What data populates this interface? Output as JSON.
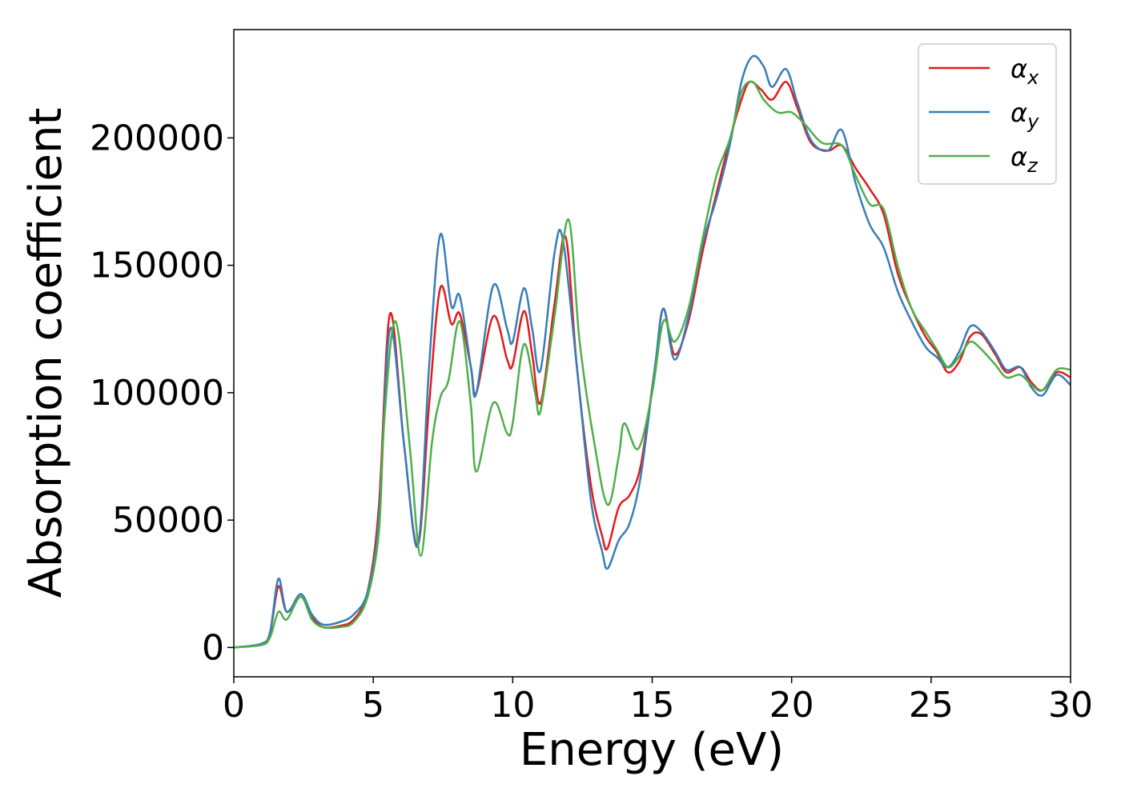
{
  "chart_data": {
    "type": "line",
    "title": "",
    "xlabel": "Energy (eV)",
    "ylabel": "Absorption coefficient",
    "xlim": [
      0,
      30
    ],
    "ylim": [
      -11500,
      242500
    ],
    "x_ticks": [
      0,
      5,
      10,
      15,
      20,
      25,
      30
    ],
    "y_ticks": [
      0,
      50000,
      100000,
      150000,
      200000
    ],
    "grid": false,
    "legend_position": "top-right",
    "series": [
      {
        "name": "α",
        "subscript": "x",
        "color": "#e41a1c",
        "points": [
          [
            0,
            0
          ],
          [
            1,
            1500
          ],
          [
            1.3,
            6000
          ],
          [
            1.6,
            24000
          ],
          [
            1.9,
            14000
          ],
          [
            2.4,
            20000
          ],
          [
            2.8,
            12000
          ],
          [
            3.2,
            8000
          ],
          [
            3.8,
            8500
          ],
          [
            4.3,
            11000
          ],
          [
            4.8,
            22000
          ],
          [
            5.2,
            55000
          ],
          [
            5.6,
            131000
          ],
          [
            6.1,
            80000
          ],
          [
            6.6,
            40000
          ],
          [
            7.0,
            95000
          ],
          [
            7.4,
            141000
          ],
          [
            7.8,
            127000
          ],
          [
            8.1,
            131000
          ],
          [
            8.5,
            110000
          ],
          [
            8.7,
            100000
          ],
          [
            9.3,
            130000
          ],
          [
            9.8,
            113000
          ],
          [
            10.0,
            111000
          ],
          [
            10.4,
            132000
          ],
          [
            10.7,
            115000
          ],
          [
            11.0,
            96000
          ],
          [
            11.5,
            135000
          ],
          [
            11.9,
            161000
          ],
          [
            12.3,
            110000
          ],
          [
            12.8,
            64000
          ],
          [
            13.2,
            44000
          ],
          [
            13.4,
            39000
          ],
          [
            13.8,
            55000
          ],
          [
            14.2,
            60000
          ],
          [
            14.6,
            72000
          ],
          [
            15.1,
            110000
          ],
          [
            15.4,
            133000
          ],
          [
            15.8,
            115000
          ],
          [
            16.3,
            128000
          ],
          [
            16.8,
            155000
          ],
          [
            17.3,
            178000
          ],
          [
            17.8,
            200000
          ],
          [
            18.2,
            215000
          ],
          [
            18.5,
            222000
          ],
          [
            18.9,
            219000
          ],
          [
            19.3,
            215000
          ],
          [
            19.8,
            222000
          ],
          [
            20.2,
            212000
          ],
          [
            20.7,
            198000
          ],
          [
            21.3,
            195000
          ],
          [
            21.8,
            197000
          ],
          [
            22.3,
            188000
          ],
          [
            22.8,
            180000
          ],
          [
            23.3,
            170000
          ],
          [
            23.8,
            147000
          ],
          [
            24.3,
            133000
          ],
          [
            24.8,
            122000
          ],
          [
            25.2,
            116000
          ],
          [
            25.6,
            108000
          ],
          [
            26.0,
            112000
          ],
          [
            26.4,
            122000
          ],
          [
            26.8,
            123000
          ],
          [
            27.3,
            115000
          ],
          [
            27.7,
            108000
          ],
          [
            28.2,
            110000
          ],
          [
            28.6,
            104000
          ],
          [
            29.0,
            101000
          ],
          [
            29.5,
            108000
          ],
          [
            30.0,
            106000
          ]
        ]
      },
      {
        "name": "α",
        "subscript": "y",
        "color": "#377eb8",
        "points": [
          [
            0,
            0
          ],
          [
            1,
            1500
          ],
          [
            1.3,
            6000
          ],
          [
            1.6,
            27000
          ],
          [
            1.9,
            14000
          ],
          [
            2.4,
            21000
          ],
          [
            2.8,
            13000
          ],
          [
            3.2,
            9000
          ],
          [
            3.8,
            10000
          ],
          [
            4.3,
            13000
          ],
          [
            4.8,
            22000
          ],
          [
            5.2,
            50000
          ],
          [
            5.6,
            125000
          ],
          [
            6.1,
            80000
          ],
          [
            6.6,
            40000
          ],
          [
            7.0,
            110000
          ],
          [
            7.4,
            162000
          ],
          [
            7.8,
            134000
          ],
          [
            8.1,
            138000
          ],
          [
            8.5,
            110000
          ],
          [
            8.7,
            100000
          ],
          [
            9.3,
            142000
          ],
          [
            9.8,
            125000
          ],
          [
            10.0,
            120000
          ],
          [
            10.4,
            141000
          ],
          [
            10.7,
            125000
          ],
          [
            11.0,
            109000
          ],
          [
            11.5,
            155000
          ],
          [
            11.8,
            160000
          ],
          [
            12.3,
            110000
          ],
          [
            12.8,
            58000
          ],
          [
            13.2,
            38000
          ],
          [
            13.4,
            31000
          ],
          [
            13.8,
            42000
          ],
          [
            14.2,
            49000
          ],
          [
            14.6,
            68000
          ],
          [
            15.1,
            110000
          ],
          [
            15.4,
            133000
          ],
          [
            15.8,
            113000
          ],
          [
            16.3,
            130000
          ],
          [
            16.8,
            158000
          ],
          [
            17.3,
            176000
          ],
          [
            17.8,
            198000
          ],
          [
            18.2,
            222000
          ],
          [
            18.6,
            232000
          ],
          [
            19.0,
            228000
          ],
          [
            19.3,
            220000
          ],
          [
            19.8,
            227000
          ],
          [
            20.2,
            214000
          ],
          [
            20.7,
            199000
          ],
          [
            21.3,
            195000
          ],
          [
            21.8,
            203000
          ],
          [
            22.3,
            182000
          ],
          [
            22.8,
            166000
          ],
          [
            23.3,
            157000
          ],
          [
            23.8,
            140000
          ],
          [
            24.3,
            128000
          ],
          [
            24.8,
            118000
          ],
          [
            25.2,
            114000
          ],
          [
            25.6,
            110000
          ],
          [
            26.0,
            116000
          ],
          [
            26.4,
            126000
          ],
          [
            26.8,
            124000
          ],
          [
            27.3,
            116000
          ],
          [
            27.7,
            109000
          ],
          [
            28.2,
            110000
          ],
          [
            28.6,
            102000
          ],
          [
            29.0,
            99000
          ],
          [
            29.5,
            107000
          ],
          [
            30.0,
            103000
          ]
        ]
      },
      {
        "name": "α",
        "subscript": "z",
        "color": "#4daf4a",
        "points": [
          [
            0,
            0
          ],
          [
            1,
            1000
          ],
          [
            1.3,
            4000
          ],
          [
            1.6,
            14000
          ],
          [
            1.9,
            11000
          ],
          [
            2.4,
            20000
          ],
          [
            2.8,
            11000
          ],
          [
            3.2,
            8000
          ],
          [
            3.8,
            8000
          ],
          [
            4.3,
            10000
          ],
          [
            4.8,
            20000
          ],
          [
            5.2,
            45000
          ],
          [
            5.4,
            90000
          ],
          [
            5.8,
            128000
          ],
          [
            6.3,
            80000
          ],
          [
            6.7,
            36000
          ],
          [
            7.1,
            80000
          ],
          [
            7.4,
            98000
          ],
          [
            7.7,
            105000
          ],
          [
            8.1,
            128000
          ],
          [
            8.5,
            95000
          ],
          [
            8.7,
            69000
          ],
          [
            9.3,
            96000
          ],
          [
            9.8,
            84000
          ],
          [
            10.0,
            88000
          ],
          [
            10.4,
            119000
          ],
          [
            10.8,
            100000
          ],
          [
            11.0,
            93000
          ],
          [
            11.5,
            130000
          ],
          [
            12.0,
            168000
          ],
          [
            12.4,
            120000
          ],
          [
            12.9,
            82000
          ],
          [
            13.4,
            56000
          ],
          [
            13.8,
            75000
          ],
          [
            14.0,
            88000
          ],
          [
            14.5,
            78000
          ],
          [
            15.0,
            100000
          ],
          [
            15.4,
            128000
          ],
          [
            15.8,
            120000
          ],
          [
            16.3,
            133000
          ],
          [
            16.8,
            160000
          ],
          [
            17.3,
            185000
          ],
          [
            17.8,
            200000
          ],
          [
            18.2,
            218000
          ],
          [
            18.6,
            222000
          ],
          [
            19.0,
            215000
          ],
          [
            19.5,
            210000
          ],
          [
            20.0,
            210000
          ],
          [
            20.5,
            205000
          ],
          [
            21.1,
            198000
          ],
          [
            21.8,
            197000
          ],
          [
            22.3,
            185000
          ],
          [
            22.8,
            174000
          ],
          [
            23.3,
            172000
          ],
          [
            23.8,
            150000
          ],
          [
            24.3,
            133000
          ],
          [
            24.8,
            124000
          ],
          [
            25.2,
            117000
          ],
          [
            25.6,
            110000
          ],
          [
            26.0,
            114000
          ],
          [
            26.4,
            120000
          ],
          [
            26.8,
            117000
          ],
          [
            27.3,
            111000
          ],
          [
            27.7,
            106000
          ],
          [
            28.2,
            107000
          ],
          [
            28.6,
            103000
          ],
          [
            29.0,
            101000
          ],
          [
            29.5,
            109000
          ],
          [
            30.0,
            109000
          ]
        ]
      }
    ]
  }
}
